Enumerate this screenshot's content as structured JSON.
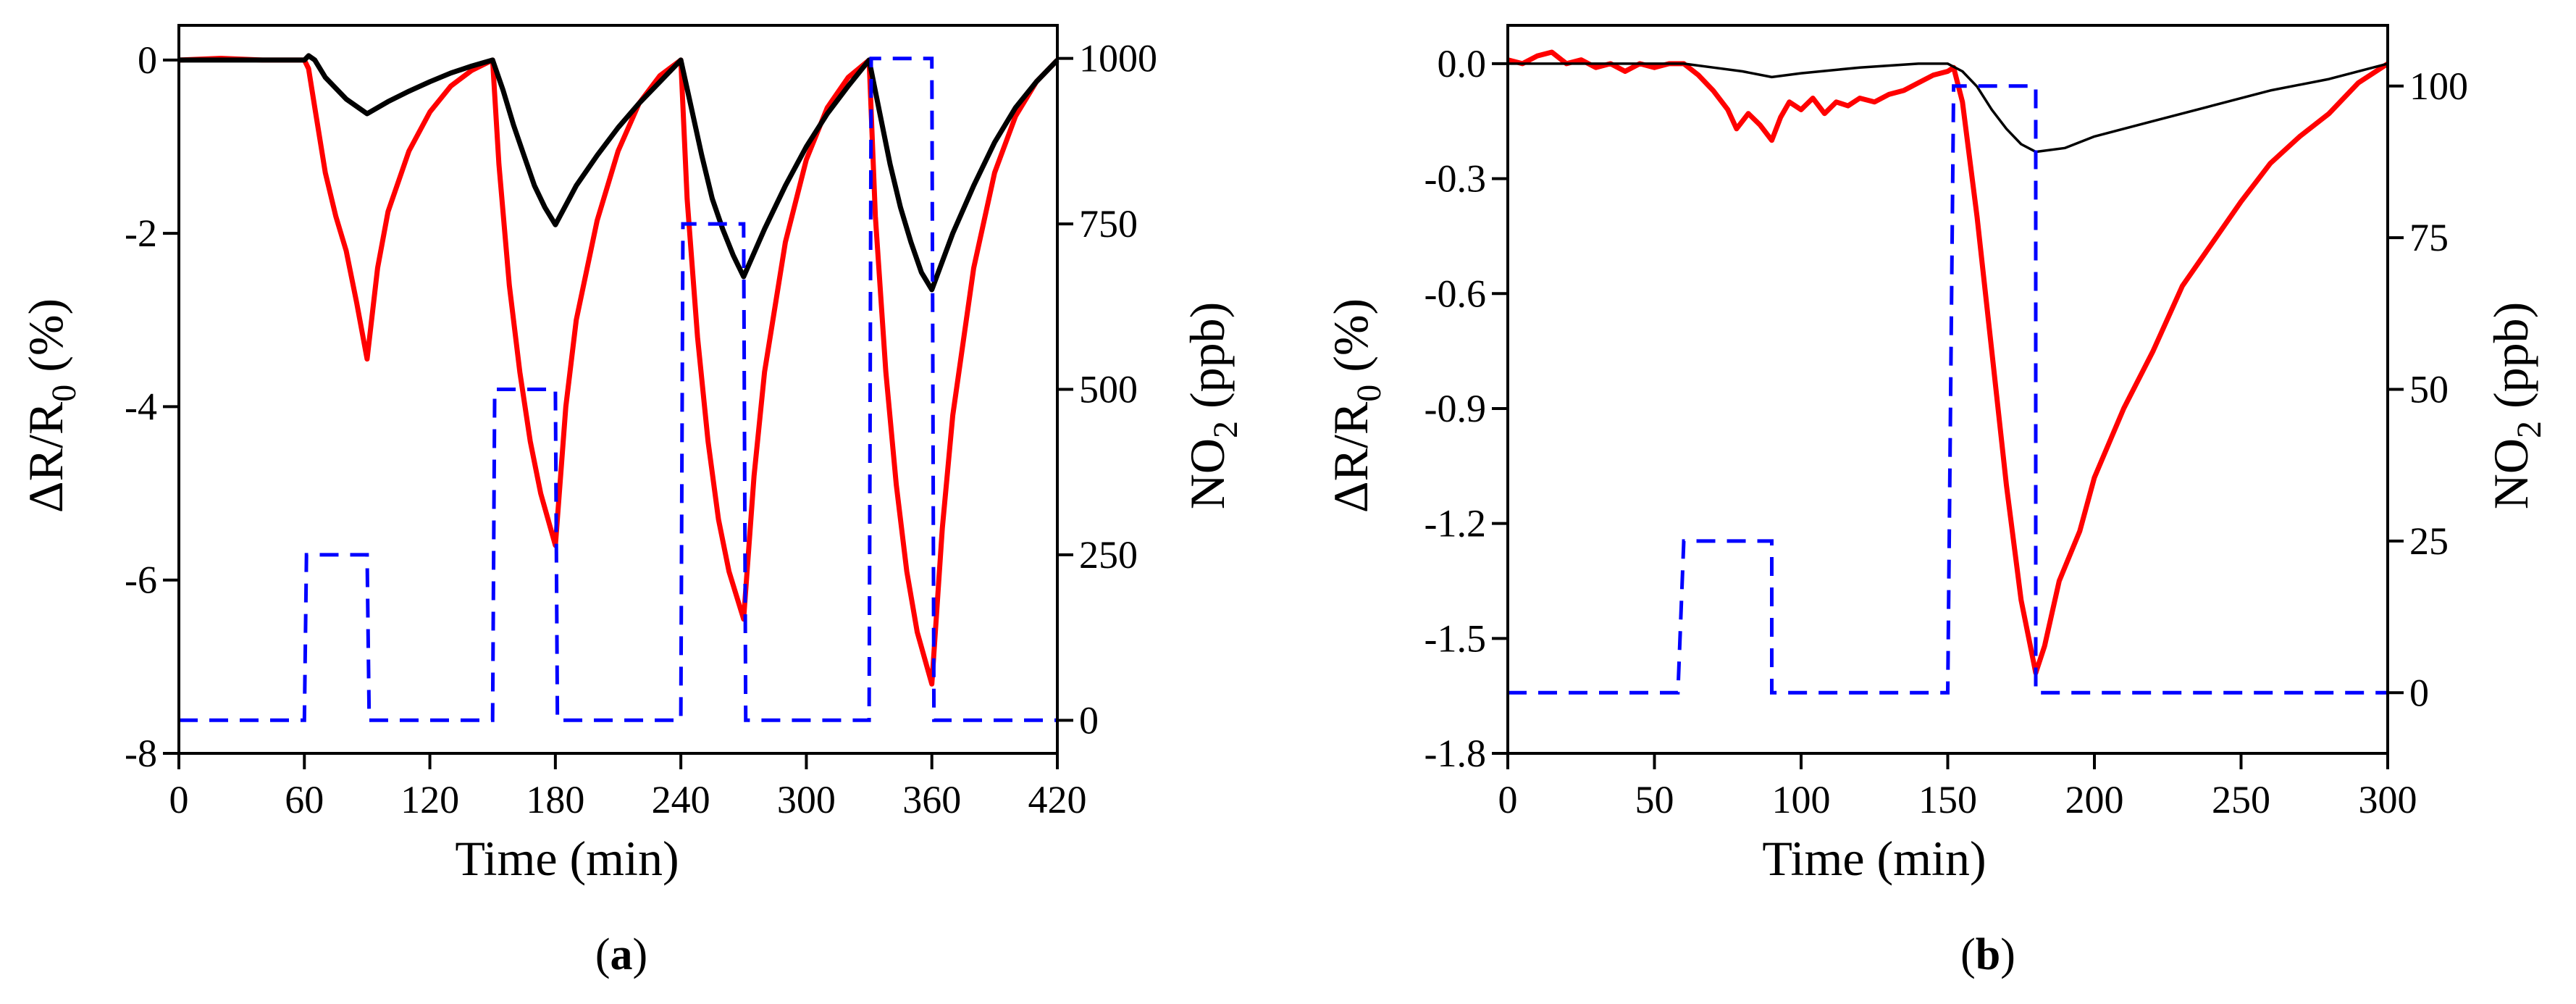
{
  "chart_data": [
    {
      "type": "line",
      "panel": "a",
      "panel_label": "a",
      "xlabel": "Time (min)",
      "ylabel_left": "ΔR/R0 (%)",
      "ylabel_left_parts": [
        "ΔR/R",
        "0",
        " (%)"
      ],
      "ylabel_right": "NO2 (ppb)",
      "ylabel_right_parts": [
        "NO",
        "2",
        " (ppb)"
      ],
      "xlim": [
        0,
        420
      ],
      "ylim_left": [
        -8,
        0.4
      ],
      "ylim_right": [
        -50,
        1050
      ],
      "xticks": [
        0,
        60,
        120,
        180,
        240,
        300,
        360,
        420
      ],
      "xtick_labels": [
        "0",
        "60",
        "120",
        "180",
        "240",
        "300",
        "360",
        "420"
      ],
      "yticks_left": [
        0,
        -2,
        -4,
        -6,
        -8
      ],
      "ytick_labels_left": [
        "0",
        "-2",
        "-4",
        "-6",
        "-8"
      ],
      "yticks_right": [
        1000,
        750,
        500,
        250,
        0
      ],
      "ytick_labels_right": [
        "1000",
        "750",
        "500",
        "250",
        "0"
      ],
      "series": [
        {
          "name": "sensor response (red)",
          "axis": "left",
          "color": "#ff0000",
          "points": [
            [
              0,
              0
            ],
            [
              20,
              0.02
            ],
            [
              40,
              0
            ],
            [
              60,
              0
            ],
            [
              62,
              -0.1
            ],
            [
              65,
              -0.55
            ],
            [
              70,
              -1.3
            ],
            [
              75,
              -1.8
            ],
            [
              80,
              -2.2
            ],
            [
              85,
              -2.8
            ],
            [
              90,
              -3.45
            ],
            [
              95,
              -2.4
            ],
            [
              100,
              -1.75
            ],
            [
              110,
              -1.05
            ],
            [
              120,
              -0.6
            ],
            [
              130,
              -0.3
            ],
            [
              140,
              -0.12
            ],
            [
              150,
              0
            ],
            [
              153,
              -1.2
            ],
            [
              158,
              -2.6
            ],
            [
              163,
              -3.6
            ],
            [
              168,
              -4.4
            ],
            [
              173,
              -5.0
            ],
            [
              180,
              -5.6
            ],
            [
              185,
              -4.0
            ],
            [
              190,
              -3.0
            ],
            [
              200,
              -1.85
            ],
            [
              210,
              -1.05
            ],
            [
              220,
              -0.5
            ],
            [
              230,
              -0.18
            ],
            [
              240,
              0
            ],
            [
              243,
              -1.6
            ],
            [
              248,
              -3.2
            ],
            [
              253,
              -4.4
            ],
            [
              258,
              -5.3
            ],
            [
              263,
              -5.9
            ],
            [
              270,
              -6.45
            ],
            [
              275,
              -4.8
            ],
            [
              280,
              -3.6
            ],
            [
              290,
              -2.1
            ],
            [
              300,
              -1.15
            ],
            [
              310,
              -0.55
            ],
            [
              320,
              -0.2
            ],
            [
              330,
              0
            ],
            [
              333,
              -1.8
            ],
            [
              338,
              -3.6
            ],
            [
              343,
              -4.9
            ],
            [
              348,
              -5.9
            ],
            [
              353,
              -6.6
            ],
            [
              360,
              -7.2
            ],
            [
              365,
              -5.4
            ],
            [
              370,
              -4.1
            ],
            [
              380,
              -2.4
            ],
            [
              390,
              -1.3
            ],
            [
              400,
              -0.65
            ],
            [
              410,
              -0.25
            ],
            [
              420,
              0
            ]
          ]
        },
        {
          "name": "sensor response (black)",
          "axis": "left",
          "color": "#000000",
          "points": [
            [
              0,
              0
            ],
            [
              30,
              0
            ],
            [
              60,
              0
            ],
            [
              62,
              0.05
            ],
            [
              65,
              0
            ],
            [
              70,
              -0.2
            ],
            [
              80,
              -0.45
            ],
            [
              90,
              -0.62
            ],
            [
              100,
              -0.48
            ],
            [
              110,
              -0.36
            ],
            [
              120,
              -0.25
            ],
            [
              130,
              -0.15
            ],
            [
              140,
              -0.07
            ],
            [
              150,
              0
            ],
            [
              155,
              -0.35
            ],
            [
              160,
              -0.75
            ],
            [
              165,
              -1.1
            ],
            [
              170,
              -1.45
            ],
            [
              175,
              -1.7
            ],
            [
              180,
              -1.9
            ],
            [
              190,
              -1.45
            ],
            [
              200,
              -1.1
            ],
            [
              210,
              -0.78
            ],
            [
              220,
              -0.5
            ],
            [
              230,
              -0.25
            ],
            [
              240,
              0
            ],
            [
              245,
              -0.55
            ],
            [
              250,
              -1.1
            ],
            [
              255,
              -1.6
            ],
            [
              260,
              -1.95
            ],
            [
              265,
              -2.25
            ],
            [
              270,
              -2.5
            ],
            [
              280,
              -1.95
            ],
            [
              290,
              -1.45
            ],
            [
              300,
              -1.0
            ],
            [
              310,
              -0.62
            ],
            [
              320,
              -0.3
            ],
            [
              330,
              0
            ],
            [
              335,
              -0.6
            ],
            [
              340,
              -1.2
            ],
            [
              345,
              -1.7
            ],
            [
              350,
              -2.1
            ],
            [
              355,
              -2.45
            ],
            [
              360,
              -2.65
            ],
            [
              370,
              -2.0
            ],
            [
              380,
              -1.45
            ],
            [
              390,
              -0.95
            ],
            [
              400,
              -0.55
            ],
            [
              410,
              -0.25
            ],
            [
              420,
              0
            ]
          ]
        },
        {
          "name": "NO2 concentration (blue dashed)",
          "axis": "right",
          "color": "#0000ff",
          "points": [
            [
              0,
              0
            ],
            [
              60,
              0
            ],
            [
              61,
              250
            ],
            [
              90,
              250
            ],
            [
              91,
              0
            ],
            [
              150,
              0
            ],
            [
              151,
              500
            ],
            [
              180,
              500
            ],
            [
              181,
              0
            ],
            [
              240,
              0
            ],
            [
              241,
              750
            ],
            [
              270,
              750
            ],
            [
              271,
              0
            ],
            [
              330,
              0
            ],
            [
              331,
              1000
            ],
            [
              360,
              1000
            ],
            [
              361,
              0
            ],
            [
              420,
              0
            ]
          ]
        }
      ]
    },
    {
      "type": "line",
      "panel": "b",
      "panel_label": "b",
      "xlabel": "Time (min)",
      "ylabel_left": "ΔR/R0 (%)",
      "ylabel_left_parts": [
        "ΔR/R",
        "0",
        " (%)"
      ],
      "ylabel_right": "NO2 (ppb)",
      "ylabel_right_parts": [
        "NO",
        "2",
        " (ppb)"
      ],
      "xlim": [
        0,
        300
      ],
      "ylim_left": [
        -1.8,
        0.1
      ],
      "ylim_right": [
        -10,
        110
      ],
      "xticks": [
        0,
        50,
        100,
        150,
        200,
        250,
        300
      ],
      "xtick_labels": [
        "0",
        "50",
        "100",
        "150",
        "200",
        "250",
        "300"
      ],
      "yticks_left": [
        0.0,
        -0.3,
        -0.6,
        -0.9,
        -1.2,
        -1.5,
        -1.8
      ],
      "ytick_labels_left": [
        "0.0",
        "-0.3",
        "-0.6",
        "-0.9",
        "-1.2",
        "-1.5",
        "-1.8"
      ],
      "yticks_right": [
        100,
        75,
        50,
        25,
        0
      ],
      "ytick_labels_right": [
        "100",
        "75",
        "50",
        "25",
        "0"
      ],
      "series": [
        {
          "name": "sensor response (red)",
          "axis": "left",
          "color": "#ff0000",
          "points": [
            [
              0,
              0.01
            ],
            [
              5,
              0.0
            ],
            [
              10,
              0.02
            ],
            [
              15,
              0.03
            ],
            [
              20,
              0.0
            ],
            [
              25,
              0.01
            ],
            [
              30,
              -0.01
            ],
            [
              35,
              0.0
            ],
            [
              40,
              -0.02
            ],
            [
              45,
              0.0
            ],
            [
              50,
              -0.01
            ],
            [
              55,
              0.0
            ],
            [
              60,
              0.0
            ],
            [
              65,
              -0.03
            ],
            [
              70,
              -0.07
            ],
            [
              75,
              -0.12
            ],
            [
              78,
              -0.17
            ],
            [
              82,
              -0.13
            ],
            [
              86,
              -0.16
            ],
            [
              90,
              -0.2
            ],
            [
              93,
              -0.14
            ],
            [
              96,
              -0.1
            ],
            [
              100,
              -0.12
            ],
            [
              104,
              -0.09
            ],
            [
              108,
              -0.13
            ],
            [
              112,
              -0.1
            ],
            [
              116,
              -0.11
            ],
            [
              120,
              -0.09
            ],
            [
              125,
              -0.1
            ],
            [
              130,
              -0.08
            ],
            [
              135,
              -0.07
            ],
            [
              140,
              -0.05
            ],
            [
              145,
              -0.03
            ],
            [
              150,
              -0.02
            ],
            [
              152,
              -0.01
            ],
            [
              155,
              -0.1
            ],
            [
              160,
              -0.4
            ],
            [
              165,
              -0.75
            ],
            [
              170,
              -1.1
            ],
            [
              175,
              -1.4
            ],
            [
              180,
              -1.59
            ],
            [
              183,
              -1.52
            ],
            [
              188,
              -1.35
            ],
            [
              195,
              -1.22
            ],
            [
              200,
              -1.08
            ],
            [
              210,
              -0.9
            ],
            [
              220,
              -0.75
            ],
            [
              230,
              -0.58
            ],
            [
              240,
              -0.47
            ],
            [
              250,
              -0.36
            ],
            [
              260,
              -0.26
            ],
            [
              270,
              -0.19
            ],
            [
              280,
              -0.13
            ],
            [
              290,
              -0.05
            ],
            [
              300,
              0
            ]
          ]
        },
        {
          "name": "sensor response (black)",
          "axis": "left",
          "color": "#000000",
          "points": [
            [
              0,
              0
            ],
            [
              50,
              0
            ],
            [
              60,
              0
            ],
            [
              70,
              -0.01
            ],
            [
              80,
              -0.02
            ],
            [
              90,
              -0.035
            ],
            [
              100,
              -0.025
            ],
            [
              120,
              -0.01
            ],
            [
              140,
              0
            ],
            [
              150,
              0
            ],
            [
              155,
              -0.02
            ],
            [
              160,
              -0.06
            ],
            [
              165,
              -0.12
            ],
            [
              170,
              -0.17
            ],
            [
              175,
              -0.21
            ],
            [
              180,
              -0.23
            ],
            [
              190,
              -0.22
            ],
            [
              200,
              -0.19
            ],
            [
              220,
              -0.15
            ],
            [
              240,
              -0.11
            ],
            [
              260,
              -0.07
            ],
            [
              280,
              -0.04
            ],
            [
              300,
              0
            ]
          ]
        },
        {
          "name": "NO2 concentration (blue dashed)",
          "axis": "right",
          "color": "#0000ff",
          "points": [
            [
              0,
              0
            ],
            [
              58,
              0
            ],
            [
              60,
              25
            ],
            [
              90,
              25
            ],
            [
              90,
              0
            ],
            [
              150,
              0
            ],
            [
              152,
              100
            ],
            [
              180,
              100
            ],
            [
              180,
              0
            ],
            [
              300,
              0
            ]
          ]
        }
      ]
    }
  ]
}
